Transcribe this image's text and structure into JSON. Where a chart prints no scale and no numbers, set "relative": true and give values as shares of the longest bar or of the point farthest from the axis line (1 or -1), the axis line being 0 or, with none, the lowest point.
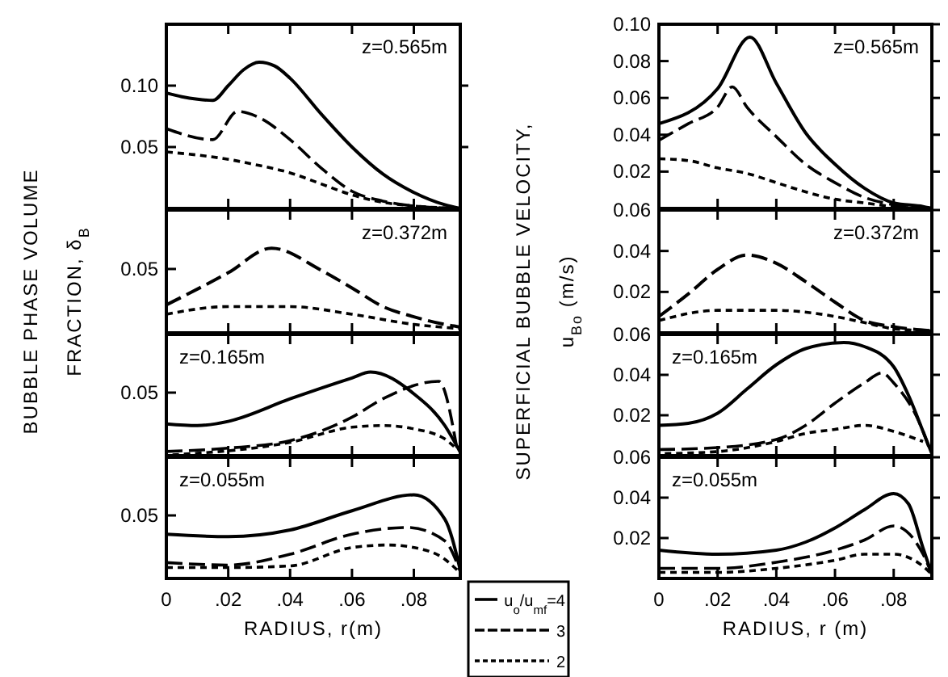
{
  "chart_data": [
    {
      "type": "line",
      "ylabel": "BUBBLE PHASE VOLUME\nFRACTION, δ$_{B}$",
      "xlim": [
        0,
        0.095
      ],
      "ylim": [
        0,
        0.15
      ],
      "xticks": [
        0,
        0.02,
        0.04,
        0.06,
        0.08
      ],
      "yticks": [
        0.05,
        {
          "value": 0.1,
          "label": "0.10"
        }
      ],
      "tick_labels": "y",
      "annotations": [
        "z=0.565m"
      ],
      "series": [
        {
          "color": "#000000",
          "line_style": "solid",
          "x": [
            0,
            0.005,
            0.01,
            0.015,
            0.02,
            0.025,
            0.03,
            0.035,
            0.04,
            0.05,
            0.06,
            0.07,
            0.08,
            0.09,
            0.095
          ],
          "values": [
            0.094,
            0.091,
            0.089,
            0.088,
            0.1,
            0.113,
            0.119,
            0.116,
            0.106,
            0.077,
            0.05,
            0.028,
            0.013,
            0.003,
            0
          ]
        },
        {
          "color": "#000000",
          "line_style": "dashed",
          "x": [
            0,
            0.015,
            0.023,
            0.03,
            0.04,
            0.05,
            0.06,
            0.07,
            0.08,
            0.095
          ],
          "values": [
            0.065,
            0.056,
            0.079,
            0.074,
            0.056,
            0.033,
            0.014,
            0.006,
            0.002,
            0
          ]
        },
        {
          "color": "#000000",
          "line_style": "dashed",
          "x": [
            0,
            0.02,
            0.03,
            0.04,
            0.05,
            0.06,
            0.07,
            0.08,
            0.095
          ],
          "values": [
            0.046,
            0.04,
            0.035,
            0.029,
            0.02,
            0.011,
            0.005,
            0.002,
            0
          ]
        }
      ]
    },
    {
      "type": "line",
      "relative": true,
      "xlim": [
        0,
        0.095
      ],
      "xticks": [
        0,
        0.02,
        0.04,
        0.06,
        0.08
      ],
      "tick_labels": "y",
      "annotations": [
        "z=0.372m",
        "0.05"
      ],
      "series": [
        {
          "color": "#000000",
          "line_style": "dashed",
          "x": [
            0,
            0.02,
            0.034,
            0.05,
            0.06,
            0.07,
            0.08,
            0.09,
            0.095
          ],
          "values": [
            0.33,
            0.71,
            1,
            0.74,
            0.53,
            0.31,
            0.19,
            0.1,
            0.07
          ]
        },
        {
          "color": "#000000",
          "line_style": "dashed",
          "x": [
            0,
            0.02,
            0.04,
            0.06,
            0.08,
            0.095
          ],
          "values": [
            0.22,
            0.31,
            0.31,
            0.22,
            0.1,
            0.05
          ]
        }
      ]
    },
    {
      "type": "line",
      "relative": true,
      "xlim": [
        0,
        0.095
      ],
      "xticks": [
        0,
        0.02,
        0.04,
        0.06,
        0.08
      ],
      "tick_labels": "y",
      "annotations": [
        "z=0.165m",
        "0.05"
      ],
      "series": [
        {
          "color": "#000000",
          "line_style": "solid",
          "x": [
            0,
            0.01,
            0.02,
            0.04,
            0.06,
            0.066,
            0.08,
            0.09,
            0.095
          ],
          "values": [
            0.38,
            0.36,
            0.41,
            0.68,
            0.93,
            1,
            0.74,
            0.36,
            0.04
          ]
        },
        {
          "color": "#000000",
          "line_style": "dashed",
          "x": [
            0,
            0.02,
            0.04,
            0.06,
            0.07,
            0.088,
            0.094
          ],
          "values": [
            0.05,
            0.09,
            0.18,
            0.46,
            0.68,
            0.89,
            0.07
          ]
        },
        {
          "color": "#000000",
          "line_style": "dashed",
          "x": [
            0.002,
            0.04,
            0.06,
            0.07,
            0.08,
            0.09,
            0.093
          ],
          "values": [
            0.01,
            0.16,
            0.34,
            0.36,
            0.32,
            0.2,
            0.11
          ]
        }
      ]
    },
    {
      "type": "line",
      "relative": true,
      "xlabel": "RADIUS, r(m)",
      "xlim": [
        0,
        0.095
      ],
      "xticks": [
        {
          "value": 0,
          "label": "0"
        },
        {
          "value": 0.02,
          "label": ".02"
        },
        {
          "value": 0.04,
          "label": ".04"
        },
        {
          "value": 0.06,
          "label": ".06"
        },
        {
          "value": 0.08,
          "label": ".08"
        }
      ],
      "tick_labels": "x",
      "annotations": [
        "z=0.055m",
        "0.05"
      ],
      "legend": "bottom right",
      "series": [
        {
          "name": "u$_{o}$/u$_{mf}$=4",
          "color": "#000000",
          "line_style": "solid",
          "x": [
            0,
            0.02,
            0.04,
            0.06,
            0.08,
            0.09,
            0.095
          ],
          "values": [
            0.53,
            0.5,
            0.58,
            0.81,
            1,
            0.71,
            0.1
          ]
        },
        {
          "name": "3",
          "color": "#000000",
          "line_style": "dashed",
          "x": [
            0,
            0.02,
            0.04,
            0.06,
            0.078,
            0.09,
            0.095
          ],
          "values": [
            0.19,
            0.16,
            0.29,
            0.53,
            0.61,
            0.45,
            0.08
          ]
        },
        {
          "name": "2",
          "color": "#000000",
          "line_style": "dashed",
          "x": [
            0,
            0.02,
            0.04,
            0.06,
            0.072,
            0.08,
            0.09,
            0.094
          ],
          "values": [
            0.13,
            0.13,
            0.15,
            0.37,
            0.4,
            0.37,
            0.23,
            0.1
          ]
        }
      ]
    },
    {
      "type": "line",
      "ylabel": "SUPERFICIAL BUBBLE VELOCITY,\nu$_{Bo}$ (m/s)",
      "xlim": [
        0,
        0.093
      ],
      "ylim": [
        0,
        0.1
      ],
      "xticks": [
        0,
        0.02,
        0.04,
        0.06,
        0.08
      ],
      "yticks": [
        0.02,
        0.04,
        0.06,
        0.08,
        {
          "value": 0.1,
          "label": "0.10"
        }
      ],
      "tick_labels": "y",
      "annotations": [
        "z=0.565m"
      ],
      "series": [
        {
          "color": "#000000",
          "line_style": "solid",
          "x": [
            0,
            0.02,
            0.031,
            0.04,
            0.05,
            0.06,
            0.07,
            0.08,
            0.09,
            0.093
          ],
          "values": [
            0.046,
            0.065,
            0.093,
            0.068,
            0.041,
            0.024,
            0.011,
            0.003,
            0.001,
            0
          ]
        },
        {
          "color": "#000000",
          "line_style": "dashed",
          "x": [
            0,
            0.01,
            0.02,
            0.025,
            0.03,
            0.04,
            0.05,
            0.06,
            0.07,
            0.08,
            0.093
          ],
          "values": [
            0.037,
            0.046,
            0.055,
            0.066,
            0.055,
            0.039,
            0.024,
            0.014,
            0.006,
            0.002,
            0
          ]
        },
        {
          "color": "#000000",
          "line_style": "dashed",
          "x": [
            0,
            0.01,
            0.02,
            0.03,
            0.04,
            0.05,
            0.06,
            0.07,
            0.08,
            0.093
          ],
          "values": [
            0.027,
            0.026,
            0.022,
            0.019,
            0.014,
            0.009,
            0.005,
            0.003,
            0.001,
            0
          ]
        }
      ]
    },
    {
      "type": "line",
      "xlim": [
        0,
        0.093
      ],
      "ylim": [
        0,
        0.06
      ],
      "xticks": [
        0,
        0.02,
        0.04,
        0.06,
        0.08
      ],
      "yticks": [
        0.02,
        0.04,
        0.06
      ],
      "tick_labels": "y",
      "annotations": [
        "z=0.372m"
      ],
      "series": [
        {
          "color": "#000000",
          "line_style": "dashed",
          "x": [
            0,
            0.01,
            0.02,
            0.03,
            0.04,
            0.05,
            0.06,
            0.07,
            0.08,
            0.093
          ],
          "values": [
            0.008,
            0.019,
            0.031,
            0.038,
            0.034,
            0.025,
            0.015,
            0.006,
            0.003,
            0.001
          ]
        },
        {
          "color": "#000000",
          "line_style": "dashed",
          "x": [
            0,
            0.02,
            0.03,
            0.04,
            0.06,
            0.07,
            0.08,
            0.093
          ],
          "values": [
            0.006,
            0.011,
            0.011,
            0.011,
            0.008,
            0.005,
            0.002,
            0.001
          ]
        }
      ]
    },
    {
      "type": "line",
      "xlim": [
        0,
        0.093
      ],
      "ylim": [
        0,
        0.06
      ],
      "xticks": [
        0,
        0.02,
        0.04,
        0.06,
        0.08
      ],
      "yticks": [
        0.02,
        0.04,
        0.06
      ],
      "tick_labels": "y",
      "annotations": [
        "z=0.165m"
      ],
      "series": [
        {
          "color": "#000000",
          "line_style": "solid",
          "x": [
            0,
            0.01,
            0.02,
            0.03,
            0.04,
            0.05,
            0.063,
            0.07,
            0.08,
            0.085,
            0.09,
            0.093
          ],
          "values": [
            0.015,
            0.016,
            0.021,
            0.033,
            0.045,
            0.053,
            0.056,
            0.054,
            0.044,
            0.03,
            0.012,
            0.001
          ]
        },
        {
          "color": "#000000",
          "line_style": "dashed",
          "x": [
            0,
            0.02,
            0.04,
            0.05,
            0.06,
            0.07,
            0.076,
            0.08,
            0.09,
            0.092
          ],
          "values": [
            0.003,
            0.004,
            0.008,
            0.015,
            0.026,
            0.036,
            0.041,
            0.036,
            0.012,
            0.004
          ]
        },
        {
          "color": "#000000",
          "line_style": "dashed",
          "x": [
            0.002,
            0.02,
            0.04,
            0.05,
            0.06,
            0.07,
            0.08,
            0.09
          ],
          "values": [
            0.001,
            0.002,
            0.007,
            0.011,
            0.013,
            0.015,
            0.012,
            0.007
          ]
        }
      ]
    },
    {
      "type": "line",
      "xlabel": "RADIUS, r (m)",
      "xlim": [
        0,
        0.093
      ],
      "ylim": [
        0,
        0.06
      ],
      "xticks": [
        {
          "value": 0,
          "label": "0"
        },
        {
          "value": 0.02,
          "label": ".02"
        },
        {
          "value": 0.04,
          "label": ".04"
        },
        {
          "value": 0.06,
          "label": ".06"
        },
        {
          "value": 0.08,
          "label": ".08"
        }
      ],
      "yticks": [
        0.02,
        0.04,
        0.06
      ],
      "annotations": [
        "z=0.055m"
      ],
      "series": [
        {
          "color": "#000000",
          "line_style": "solid",
          "x": [
            0,
            0.02,
            0.04,
            0.05,
            0.06,
            0.07,
            0.08,
            0.085,
            0.09,
            0.093
          ],
          "values": [
            0.014,
            0.012,
            0.014,
            0.018,
            0.025,
            0.034,
            0.042,
            0.037,
            0.015,
            0.002
          ]
        },
        {
          "color": "#000000",
          "line_style": "dashed",
          "x": [
            0,
            0.02,
            0.04,
            0.06,
            0.07,
            0.08,
            0.09,
            0.093
          ],
          "values": [
            0.005,
            0.005,
            0.008,
            0.014,
            0.019,
            0.026,
            0.012,
            0.002
          ]
        },
        {
          "color": "#000000",
          "line_style": "dashed",
          "x": [
            0,
            0.02,
            0.04,
            0.06,
            0.07,
            0.08,
            0.09,
            0.093
          ],
          "values": [
            0.003,
            0.003,
            0.005,
            0.009,
            0.012,
            0.012,
            0.006,
            0.002
          ]
        }
      ]
    }
  ]
}
